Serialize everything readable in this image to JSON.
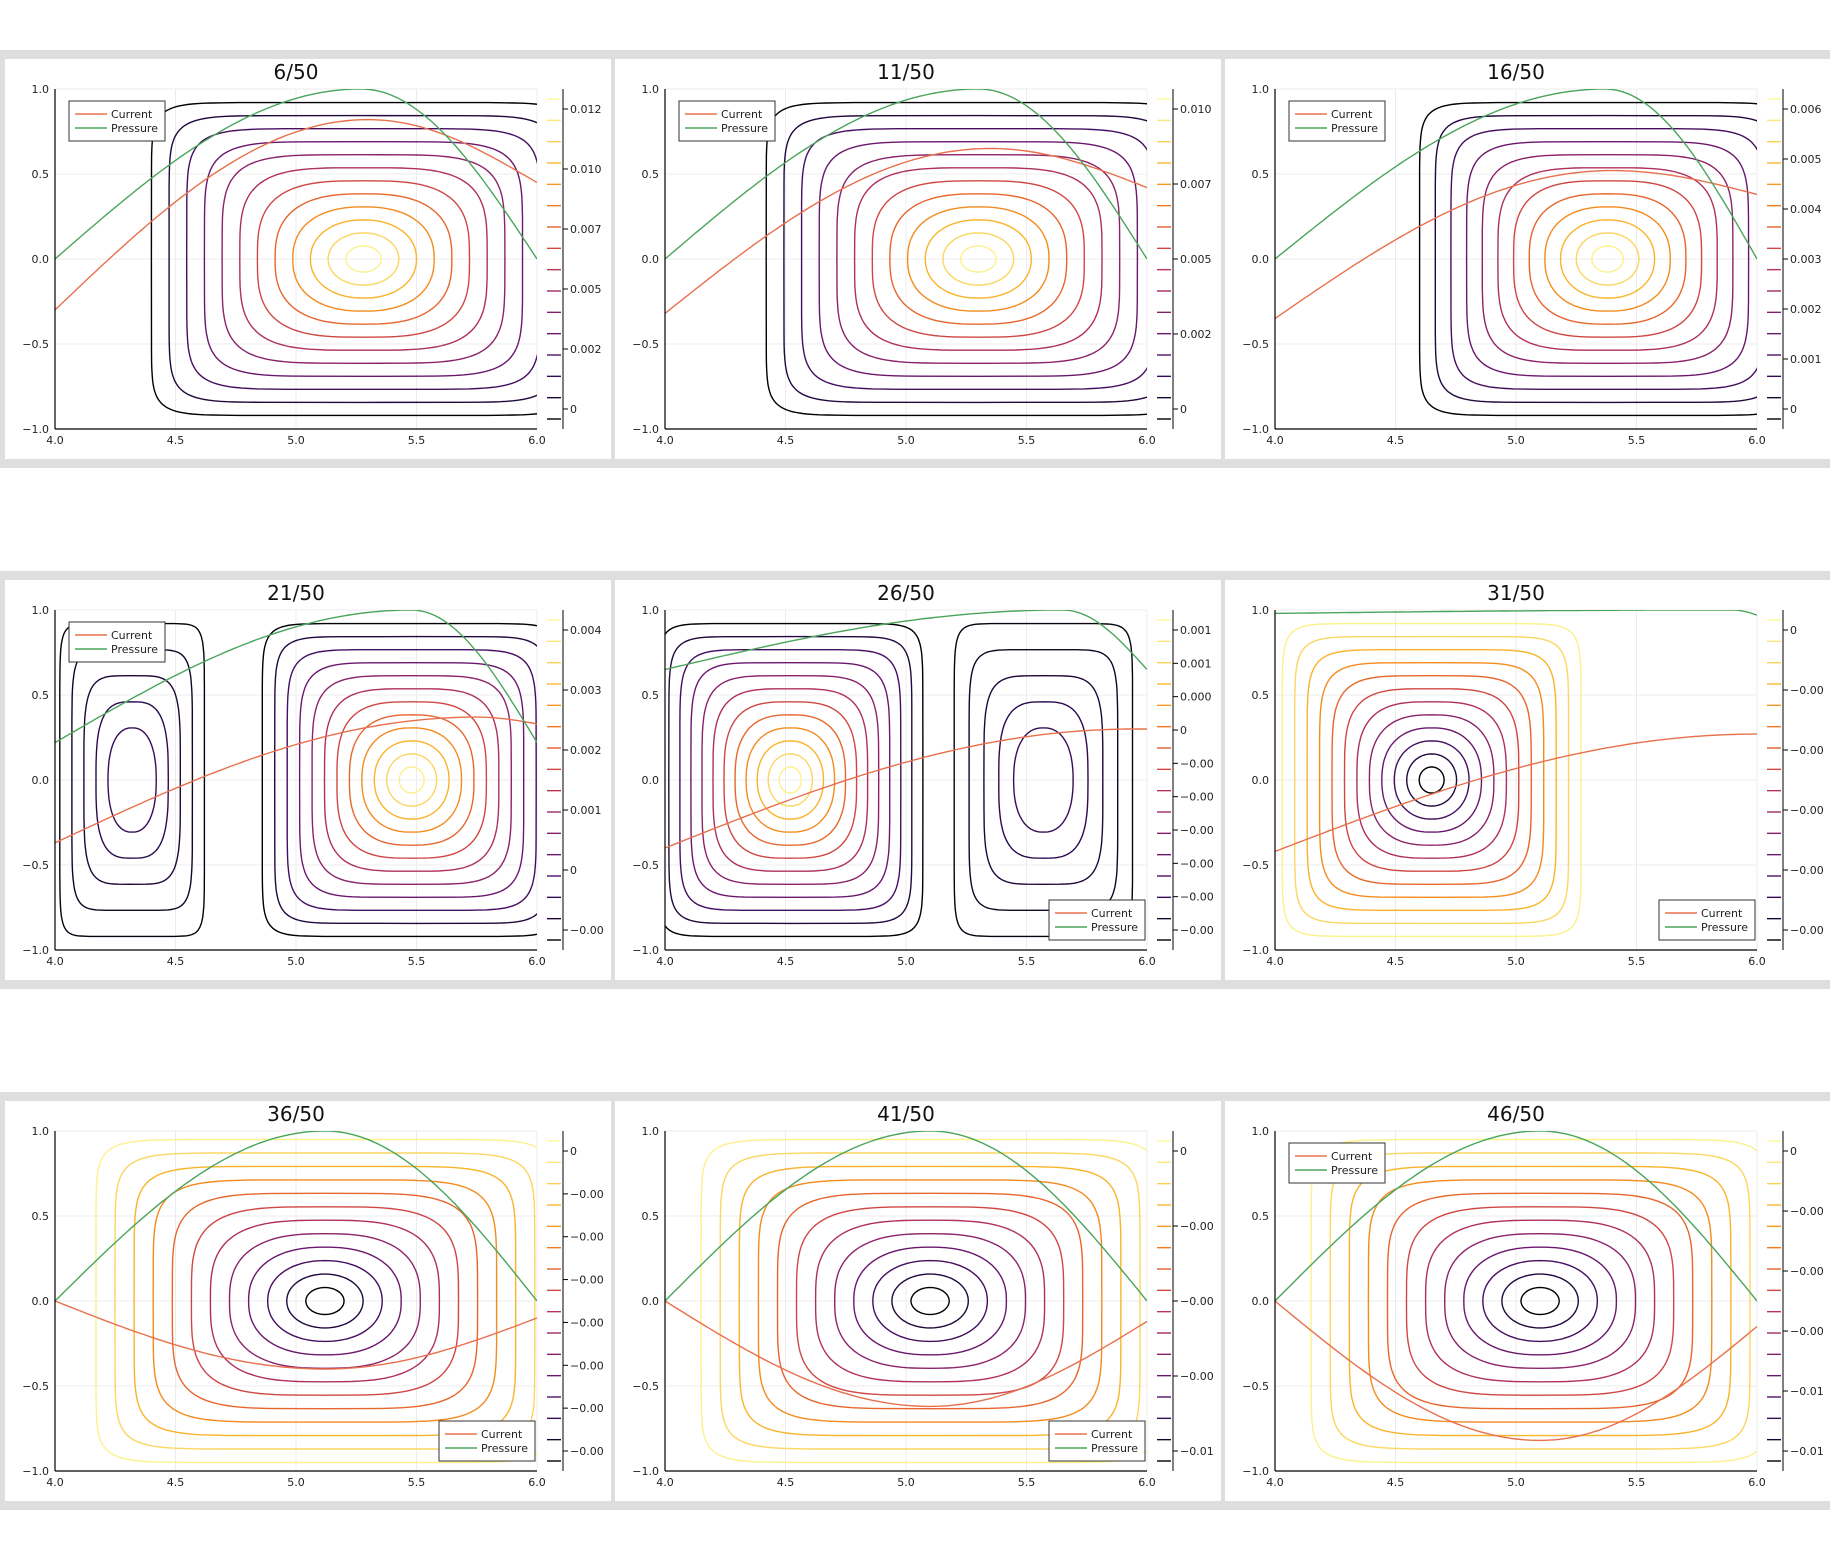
{
  "figure": {
    "panels": [
      {
        "title": "6/50",
        "cx": 5.28,
        "cy": 0.0,
        "rx": 0.88,
        "ry": 0.92,
        "cells": 1,
        "cb": [
          "0.012",
          "0.010",
          "0.007",
          "0.005",
          "0.002",
          "0"
        ],
        "legend": "top-left",
        "cur": {
          "a": -0.3,
          "b": 0.82,
          "c": 5.3,
          "e": 6.0,
          "f": 0.45
        },
        "pres": {
          "a": 0.0,
          "b": 1.0,
          "c": 5.27,
          "e": 6.0,
          "f": 0.0
        }
      },
      {
        "title": "11/50",
        "cx": 5.3,
        "cy": 0.0,
        "rx": 0.88,
        "ry": 0.92,
        "cells": 1,
        "cb": [
          "0.010",
          "0.007",
          "0.005",
          "0.002",
          "0"
        ],
        "legend": "top-left",
        "cur": {
          "a": -0.32,
          "b": 0.65,
          "c": 5.35,
          "e": 6.0,
          "f": 0.42
        },
        "pres": {
          "a": 0.0,
          "b": 1.0,
          "c": 5.3,
          "e": 6.0,
          "f": 0.0
        }
      },
      {
        "title": "16/50",
        "cx": 5.38,
        "cy": 0.0,
        "rx": 0.78,
        "ry": 0.92,
        "cells": 1,
        "cb": [
          "0.006",
          "0.005",
          "0.004",
          "0.003",
          "0.002",
          "0.001",
          "0"
        ],
        "legend": "top-left",
        "cur": {
          "a": -0.35,
          "b": 0.52,
          "c": 5.4,
          "e": 6.0,
          "f": 0.38
        },
        "pres": {
          "a": 0.0,
          "b": 1.0,
          "c": 5.37,
          "e": 6.0,
          "f": 0.0
        }
      },
      {
        "title": "21/50",
        "cx": 5.48,
        "cy": 0.0,
        "rx": 0.62,
        "ry": 0.92,
        "cells": 2,
        "cb": [
          "0.004",
          "0.003",
          "0.002",
          "0.001",
          "0",
          "−0.00"
        ],
        "legend": "top-left",
        "cur": {
          "a": -0.37,
          "b": 0.37,
          "c": 5.75,
          "e": 6.0,
          "f": 0.33
        },
        "pres": {
          "a": 0.22,
          "b": 1.0,
          "c": 5.48,
          "e": 6.0,
          "f": 0.22
        }
      },
      {
        "title": "26/50",
        "cx": 4.52,
        "cy": 0.0,
        "rx": 0.55,
        "ry": 0.92,
        "cells": 2,
        "cb": [
          "0.001",
          "0.001",
          "0.000",
          "0",
          "−0.00",
          "−0.00",
          "−0.00",
          "−0.00",
          "−0.00",
          "−0.00"
        ],
        "legend": "bottom-right",
        "cur": {
          "a": -0.4,
          "b": 0.3,
          "c": 5.95,
          "e": 6.0,
          "f": 0.3
        },
        "pres": {
          "a": 0.65,
          "b": 1.0,
          "c": 5.65,
          "e": 6.0,
          "f": 0.65
        }
      },
      {
        "title": "31/50",
        "cx": 4.65,
        "cy": 0.0,
        "rx": 0.62,
        "ry": 0.92,
        "cells": 1,
        "cb": [
          "0",
          "−0.00",
          "−0.00",
          "−0.00",
          "−0.00",
          "−0.00"
        ],
        "legend": "bottom-right",
        "cur": {
          "a": -0.42,
          "b": 0.27,
          "c": 6.0,
          "e": 6.0,
          "f": 0.27
        },
        "pres": {
          "a": 0.98,
          "b": 1.0,
          "c": 5.9,
          "e": 6.0,
          "f": 0.97
        }
      },
      {
        "title": "36/50",
        "cx": 5.12,
        "cy": 0.0,
        "rx": 0.95,
        "ry": 0.95,
        "cells": 1,
        "cb": [
          "0",
          "−0.00",
          "−0.00",
          "−0.00",
          "−0.00",
          "−0.00",
          "−0.00",
          "−0.00"
        ],
        "legend": "bottom-right",
        "cur": {
          "a": 0.0,
          "b": -0.4,
          "c": 5.12,
          "e": 6.0,
          "f": -0.1
        },
        "pres": {
          "a": 0.0,
          "b": 1.0,
          "c": 5.12,
          "e": 6.0,
          "f": 0.0
        }
      },
      {
        "title": "41/50",
        "cx": 5.1,
        "cy": 0.0,
        "rx": 0.95,
        "ry": 0.95,
        "cells": 1,
        "cb": [
          "0",
          "−0.00",
          "−0.00",
          "−0.00",
          "−0.01"
        ],
        "legend": "bottom-right",
        "cur": {
          "a": 0.0,
          "b": -0.62,
          "c": 5.1,
          "e": 6.0,
          "f": -0.12
        },
        "pres": {
          "a": 0.0,
          "b": 1.0,
          "c": 5.1,
          "e": 6.0,
          "f": 0.0
        }
      },
      {
        "title": "46/50",
        "cx": 5.1,
        "cy": 0.0,
        "rx": 0.95,
        "ry": 0.95,
        "cells": 1,
        "cb": [
          "0",
          "−0.00",
          "−0.00",
          "−0.00",
          "−0.01",
          "−0.01"
        ],
        "legend": "top-left",
        "cur": {
          "a": 0.0,
          "b": -0.82,
          "c": 5.1,
          "e": 6.0,
          "f": -0.15
        },
        "pres": {
          "a": 0.0,
          "b": 1.0,
          "c": 5.1,
          "e": 6.0,
          "f": 0.0
        }
      }
    ]
  },
  "chart_data": {
    "type": "contour",
    "xlim": [
      4.0,
      6.0
    ],
    "ylim": [
      -1.0,
      1.0
    ],
    "x_ticks": [
      "4.0",
      "4.5",
      "5.0",
      "5.5",
      "6.0"
    ],
    "y_ticks": [
      "1.0",
      "0.5",
      "0.0",
      "−0.5",
      "−1.0"
    ],
    "grid": true,
    "legend_entries": [
      "Current",
      "Pressure"
    ],
    "series_colors": {
      "Current": "#e8704c",
      "Pressure": "#4aa55a"
    },
    "colormap": [
      "#000004",
      "#2b0a4e",
      "#5c126e",
      "#87216b",
      "#b4325a",
      "#dd513a",
      "#f2801c",
      "#f9b42a",
      "#fbe070",
      "#fcffa4"
    ],
    "contour_levels": 12
  }
}
